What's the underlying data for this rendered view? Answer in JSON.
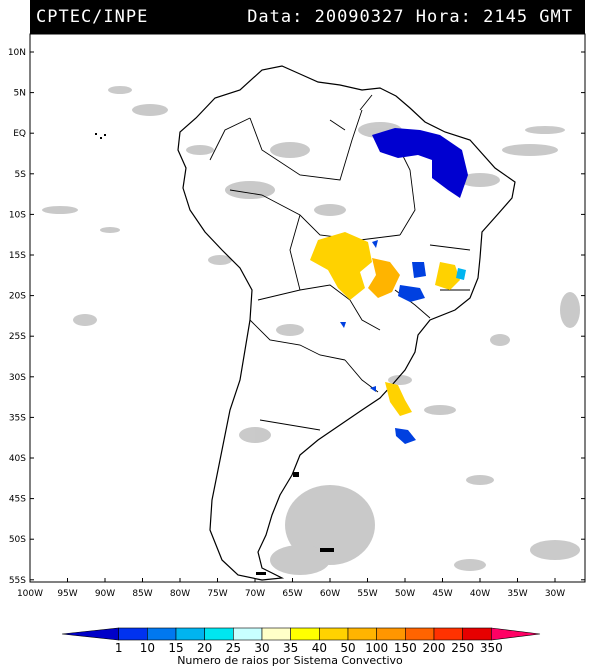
{
  "header": {
    "left": "CPTEC/INPE",
    "right": "Data: 20090327 Hora: 2145 GMT"
  },
  "lat_labels": [
    "10N",
    "5N",
    "EQ",
    "5S",
    "10S",
    "15S",
    "20S",
    "25S",
    "30S",
    "35S",
    "40S",
    "45S",
    "50S",
    "55S"
  ],
  "lon_labels": [
    "100W",
    "95W",
    "90W",
    "85W",
    "80W",
    "75W",
    "70W",
    "65W",
    "60W",
    "55W",
    "50W",
    "45W",
    "40W",
    "35W",
    "30W"
  ],
  "colorbar": {
    "ticks": [
      "1",
      "10",
      "15",
      "20",
      "25",
      "30",
      "35",
      "40",
      "50",
      "100",
      "150",
      "200",
      "250",
      "350"
    ],
    "colors": [
      "#0000c8",
      "#0032f0",
      "#0078f0",
      "#00b4f0",
      "#00e6f0",
      "#c8ffff",
      "#ffffc8",
      "#ffff00",
      "#ffd200",
      "#ffb400",
      "#ff9600",
      "#ff6400",
      "#ff3200",
      "#e60000",
      "#ff0064"
    ],
    "caption": "Numero de raios por Sistema Convectivo"
  }
}
